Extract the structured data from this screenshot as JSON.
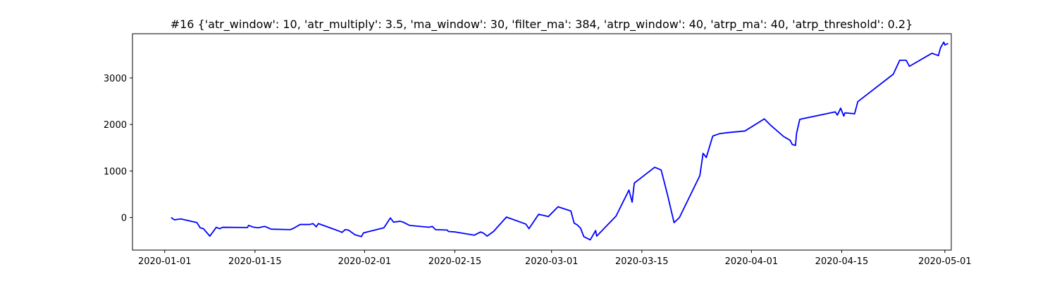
{
  "chart_data": {
    "type": "line",
    "title": "#16 {'atr_window': 10, 'atr_multiply': 3.5, 'ma_window': 30, 'filter_ma': 384, 'atrp_window': 40, 'atrp_ma': 40, 'atrp_threshold': 0.2}",
    "xlabel": "",
    "ylabel": "",
    "x_type": "date",
    "xlim": [
      "2019-12-27",
      "2020-05-02"
    ],
    "ylim": [
      -700,
      3950
    ],
    "grid": false,
    "line_color": "#0000ff",
    "x_ticks": [
      "2020-01-01",
      "2020-01-15",
      "2020-02-01",
      "2020-02-15",
      "2020-03-01",
      "2020-03-15",
      "2020-04-01",
      "2020-04-15",
      "2020-05-01"
    ],
    "y_ticks": [
      0,
      1000,
      2000,
      3000
    ],
    "series": [
      {
        "name": "",
        "points": [
          [
            "2020-01-02",
            0
          ],
          [
            "2020-01-02T12:00",
            -50
          ],
          [
            "2020-01-03T12:00",
            -30
          ],
          [
            "2020-01-06",
            -110
          ],
          [
            "2020-01-06T12:00",
            -220
          ],
          [
            "2020-01-07",
            -240
          ],
          [
            "2020-01-08",
            -400
          ],
          [
            "2020-01-09",
            -210
          ],
          [
            "2020-01-09T12:00",
            -240
          ],
          [
            "2020-01-10",
            -210
          ],
          [
            "2020-01-13T20:00",
            -215
          ],
          [
            "2020-01-14",
            -170
          ],
          [
            "2020-01-14T20:00",
            -210
          ],
          [
            "2020-01-15T12:00",
            -220
          ],
          [
            "2020-01-16T12:00",
            -190
          ],
          [
            "2020-01-17T12:00",
            -250
          ],
          [
            "2020-01-20T12:00",
            -260
          ],
          [
            "2020-01-21",
            -230
          ],
          [
            "2020-01-22",
            -150
          ],
          [
            "2020-01-23T12:00",
            -150
          ],
          [
            "2020-01-24",
            -130
          ],
          [
            "2020-01-24T12:00",
            -200
          ],
          [
            "2020-01-24T20:00",
            -130
          ],
          [
            "2020-01-27",
            -240
          ],
          [
            "2020-01-28",
            -290
          ],
          [
            "2020-01-28T12:00",
            -320
          ],
          [
            "2020-01-29",
            -260
          ],
          [
            "2020-01-29T12:00",
            -270
          ],
          [
            "2020-01-30T12:00",
            -370
          ],
          [
            "2020-01-31T12:00",
            -410
          ],
          [
            "2020-01-31T20:00",
            -330
          ],
          [
            "2020-02-04",
            -220
          ],
          [
            "2020-02-05",
            -10
          ],
          [
            "2020-02-05T12:00",
            -100
          ],
          [
            "2020-02-06T12:00",
            -80
          ],
          [
            "2020-02-07",
            -100
          ],
          [
            "2020-02-08",
            -170
          ],
          [
            "2020-02-11",
            -210
          ],
          [
            "2020-02-11T12:00",
            -190
          ],
          [
            "2020-02-12",
            -260
          ],
          [
            "2020-02-13T20:00",
            -270
          ],
          [
            "2020-02-14",
            -300
          ],
          [
            "2020-02-15",
            -310
          ],
          [
            "2020-02-18",
            -380
          ],
          [
            "2020-02-19",
            -310
          ],
          [
            "2020-02-19T12:00",
            -340
          ],
          [
            "2020-02-20",
            -400
          ],
          [
            "2020-02-21",
            -300
          ],
          [
            "2020-02-23",
            10
          ],
          [
            "2020-02-26",
            -140
          ],
          [
            "2020-02-26T12:00",
            -240
          ],
          [
            "2020-02-28",
            70
          ],
          [
            "2020-02-29T12:00",
            20
          ],
          [
            "2020-03-02",
            230
          ],
          [
            "2020-03-04",
            140
          ],
          [
            "2020-03-04T12:00",
            -120
          ],
          [
            "2020-03-05",
            -160
          ],
          [
            "2020-03-05T12:00",
            -230
          ],
          [
            "2020-03-06",
            -410
          ],
          [
            "2020-03-07",
            -480
          ],
          [
            "2020-03-07T20:00",
            -280
          ],
          [
            "2020-03-08",
            -400
          ],
          [
            "2020-03-11",
            30
          ],
          [
            "2020-03-13",
            590
          ],
          [
            "2020-03-13T12:00",
            330
          ],
          [
            "2020-03-13T20:00",
            740
          ],
          [
            "2020-03-17",
            1080
          ],
          [
            "2020-03-18",
            1020
          ],
          [
            "2020-03-19",
            480
          ],
          [
            "2020-03-20",
            -110
          ],
          [
            "2020-03-20T20:00",
            0
          ],
          [
            "2020-03-24",
            900
          ],
          [
            "2020-03-24T12:00",
            1380
          ],
          [
            "2020-03-25",
            1290
          ],
          [
            "2020-03-26",
            1750
          ],
          [
            "2020-03-27",
            1800
          ],
          [
            "2020-03-28",
            1820
          ],
          [
            "2020-03-31",
            1860
          ],
          [
            "2020-04-03",
            2120
          ],
          [
            "2020-04-04",
            1980
          ],
          [
            "2020-04-06",
            1740
          ],
          [
            "2020-04-07",
            1660
          ],
          [
            "2020-04-07T08:00",
            1570
          ],
          [
            "2020-04-07T20:00",
            1550
          ],
          [
            "2020-04-08",
            1810
          ],
          [
            "2020-04-08T12:00",
            2110
          ],
          [
            "2020-04-14",
            2270
          ],
          [
            "2020-04-14T08:00",
            2200
          ],
          [
            "2020-04-14T20:00",
            2350
          ],
          [
            "2020-04-15T08:00",
            2180
          ],
          [
            "2020-04-15T12:00",
            2250
          ],
          [
            "2020-04-17",
            2230
          ],
          [
            "2020-04-17T12:00",
            2490
          ],
          [
            "2020-04-23",
            3080
          ],
          [
            "2020-04-24",
            3380
          ],
          [
            "2020-04-25",
            3380
          ],
          [
            "2020-04-25T12:00",
            3250
          ],
          [
            "2020-04-29",
            3530
          ],
          [
            "2020-04-30",
            3480
          ],
          [
            "2020-04-30T08:00",
            3650
          ],
          [
            "2020-04-30T20:00",
            3770
          ],
          [
            "2020-05-01",
            3710
          ],
          [
            "2020-05-01T12:00",
            3740
          ]
        ]
      }
    ]
  }
}
